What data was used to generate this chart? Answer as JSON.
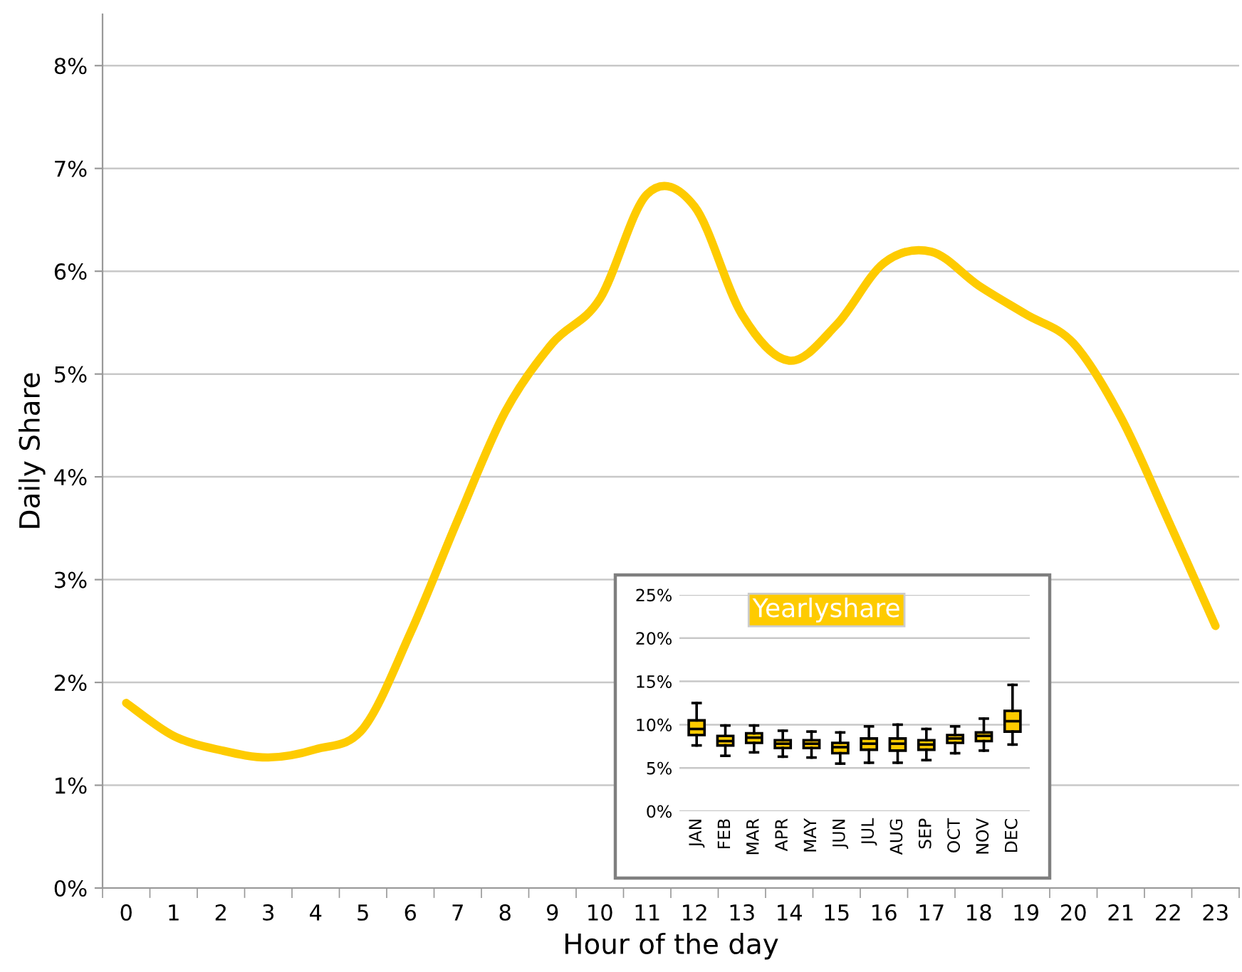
{
  "chart_data": [
    {
      "type": "line",
      "xlabel": "Hour of the day",
      "ylabel": "Daily Share",
      "categories": [
        "0",
        "1",
        "2",
        "3",
        "4",
        "5",
        "6",
        "7",
        "8",
        "9",
        "10",
        "11",
        "12",
        "13",
        "14",
        "15",
        "16",
        "17",
        "18",
        "19",
        "20",
        "21",
        "22",
        "23"
      ],
      "series": [
        {
          "color": "#fecb00",
          "values": [
            1.8,
            1.48,
            1.34,
            1.27,
            1.35,
            1.55,
            2.48,
            3.58,
            4.63,
            5.3,
            5.73,
            6.75,
            6.63,
            5.58,
            5.13,
            5.48,
            6.08,
            6.19,
            5.86,
            5.58,
            5.3,
            4.58,
            3.58,
            2.55
          ]
        }
      ],
      "ylim": [
        0,
        8.5
      ],
      "yticks": [
        {
          "value": 0,
          "label": "0%"
        },
        {
          "value": 1,
          "label": "1%"
        },
        {
          "value": 2,
          "label": "2%"
        },
        {
          "value": 3,
          "label": "3%"
        },
        {
          "value": 4,
          "label": "4%"
        },
        {
          "value": 5,
          "label": "5%"
        },
        {
          "value": 6,
          "label": "6%"
        },
        {
          "value": 7,
          "label": "7%"
        },
        {
          "value": 8,
          "label": "8%"
        }
      ],
      "grid": "y",
      "marker": "none",
      "line_style": "solid"
    },
    {
      "type": "box",
      "title": "Yearlyshare",
      "categories": [
        "JAN",
        "FEB",
        "MAR",
        "APR",
        "MAY",
        "JUN",
        "JUL",
        "AUG",
        "SEP",
        "OCT",
        "NOV",
        "DEC"
      ],
      "series": [
        {
          "color": "#fecb00",
          "boxes": [
            {
              "low": 7.6,
              "q1": 8.8,
              "median": 9.5,
              "q3": 10.5,
              "high": 12.5
            },
            {
              "low": 6.4,
              "q1": 7.6,
              "median": 8.1,
              "q3": 8.7,
              "high": 9.9
            },
            {
              "low": 6.8,
              "q1": 7.9,
              "median": 8.5,
              "q3": 9.0,
              "high": 9.9
            },
            {
              "low": 6.3,
              "q1": 7.3,
              "median": 7.8,
              "q3": 8.2,
              "high": 9.3
            },
            {
              "low": 6.2,
              "q1": 7.3,
              "median": 7.8,
              "q3": 8.2,
              "high": 9.2
            },
            {
              "low": 5.5,
              "q1": 6.7,
              "median": 7.4,
              "q3": 7.9,
              "high": 9.1
            },
            {
              "low": 5.6,
              "q1": 7.1,
              "median": 7.8,
              "q3": 8.4,
              "high": 9.8
            },
            {
              "low": 5.6,
              "q1": 7.0,
              "median": 7.8,
              "q3": 8.4,
              "high": 10.0
            },
            {
              "low": 5.9,
              "q1": 7.1,
              "median": 7.7,
              "q3": 8.2,
              "high": 9.5
            },
            {
              "low": 6.7,
              "q1": 7.9,
              "median": 8.4,
              "q3": 8.8,
              "high": 9.8
            },
            {
              "low": 7.0,
              "q1": 8.1,
              "median": 8.7,
              "q3": 9.1,
              "high": 10.7
            },
            {
              "low": 7.7,
              "q1": 9.2,
              "median": 10.4,
              "q3": 11.6,
              "high": 14.6
            }
          ]
        }
      ],
      "ylim": [
        0,
        25
      ],
      "yticks": [
        {
          "value": 0,
          "label": "0%"
        },
        {
          "value": 5,
          "label": "5%"
        },
        {
          "value": 10,
          "label": "10%"
        },
        {
          "value": 15,
          "label": "15%"
        },
        {
          "value": 20,
          "label": "20%"
        },
        {
          "value": 25,
          "label": "25%"
        }
      ],
      "grid": "y"
    }
  ]
}
